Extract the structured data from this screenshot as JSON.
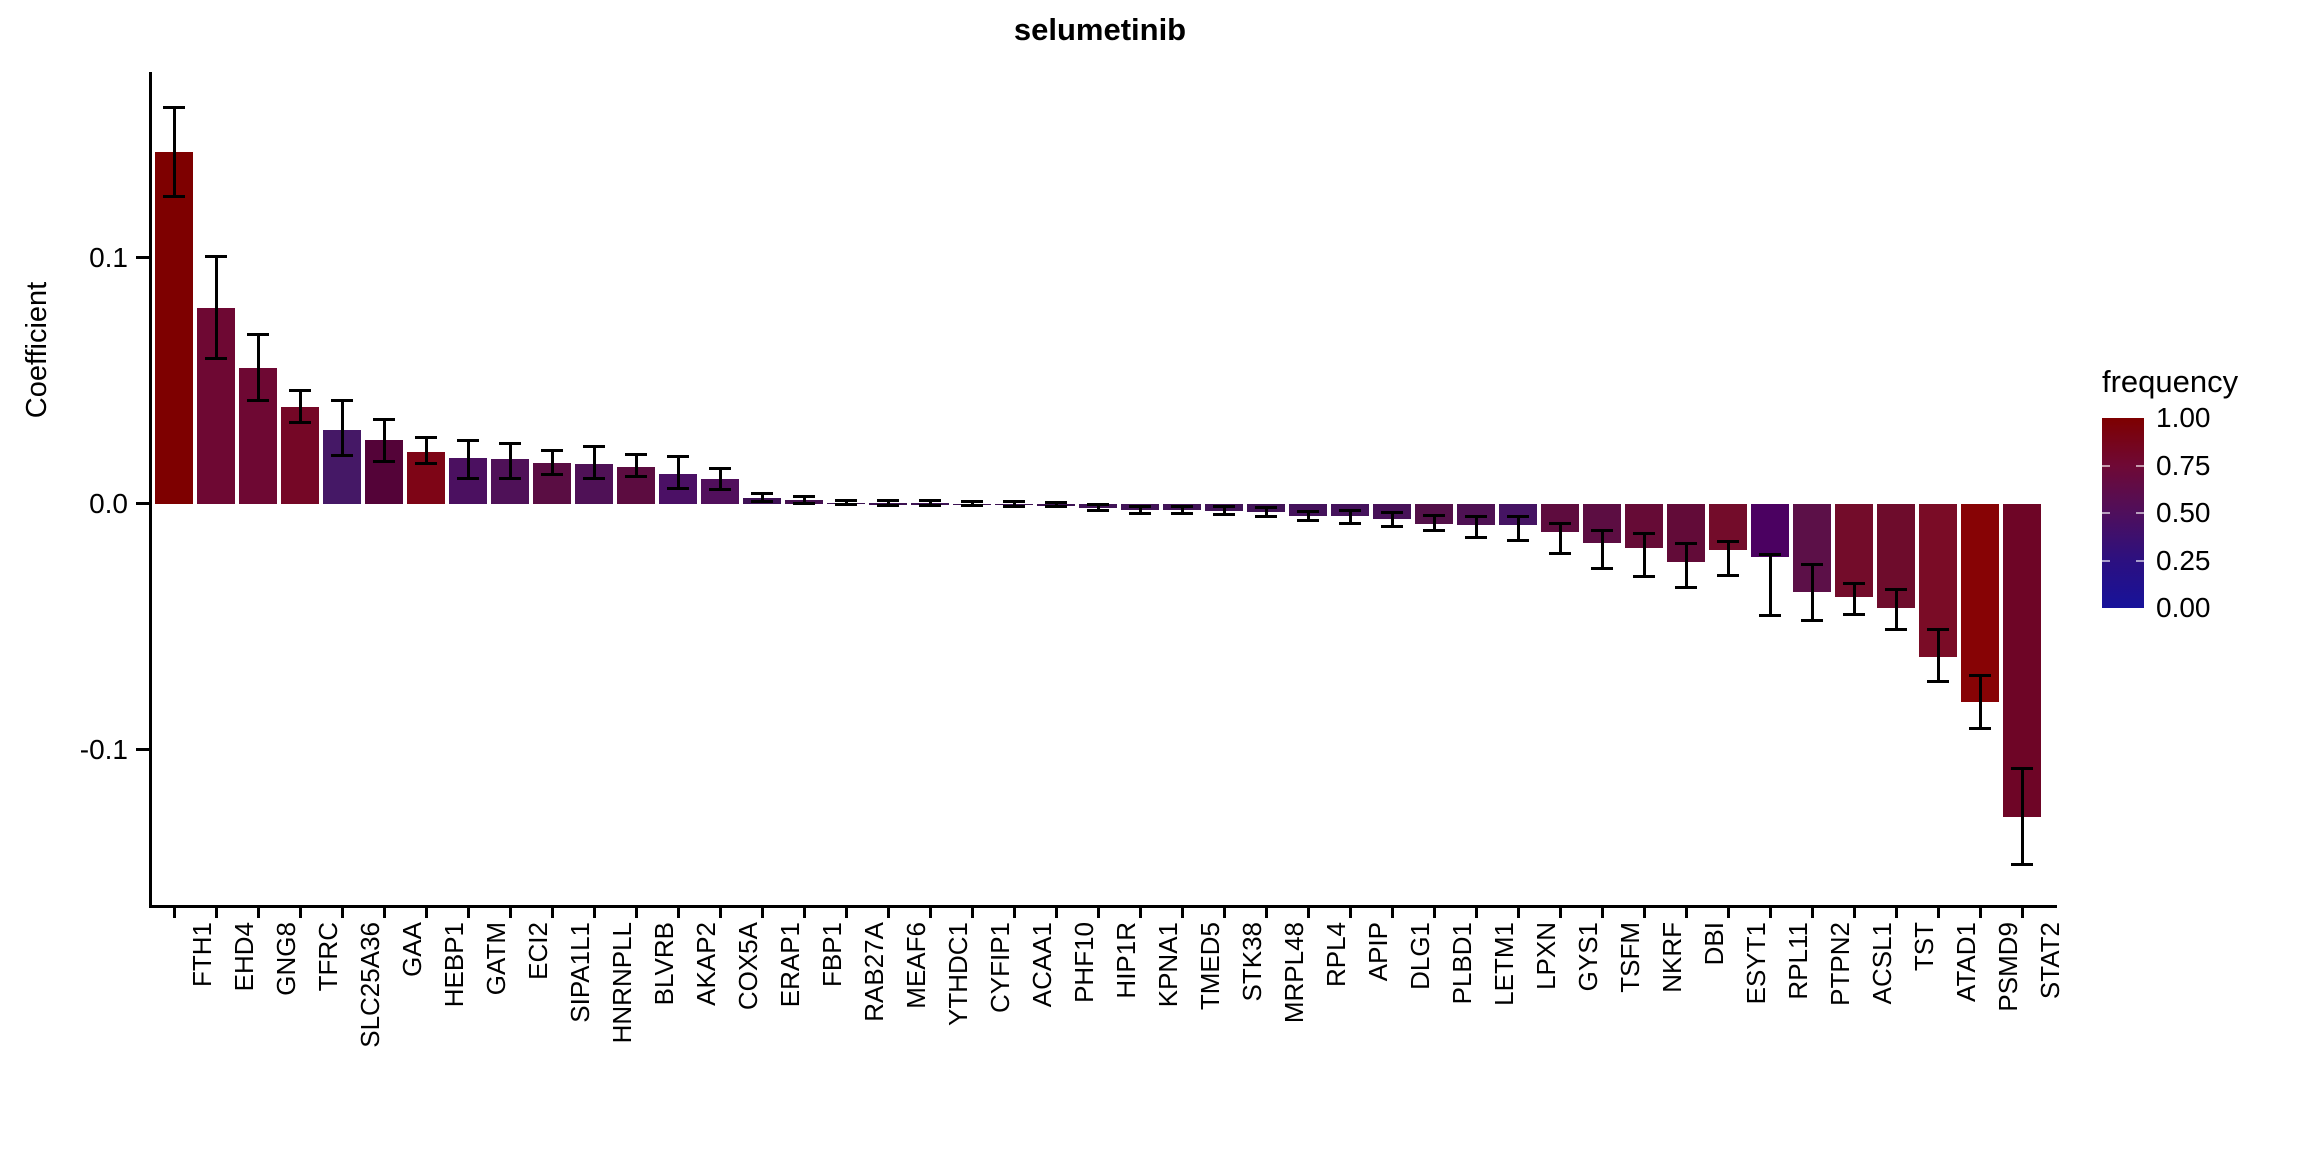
{
  "title": "selumetinib",
  "chart_data": {
    "type": "bar",
    "title": "selumetinib",
    "xlabel": "",
    "ylabel": "Coefficient",
    "ylim": [
      -0.155,
      0.175
    ],
    "grid": false,
    "y_ticks": [
      {
        "label": "0.1",
        "value": 0.1
      },
      {
        "label": "0.0",
        "value": 0.0
      },
      {
        "label": "-0.1",
        "value": -0.1
      }
    ],
    "legend": {
      "title": "frequency",
      "position": "right",
      "ticks": [
        "1.00",
        "0.75",
        "0.50",
        "0.25",
        "0.00"
      ],
      "gradient_top_to_bottom": [
        "#7E0000",
        "#6F0935",
        "#4F0F5C",
        "#2C1080",
        "#17129A"
      ]
    },
    "bars": [
      {
        "gene": "FTH1",
        "value": 0.143,
        "err_lo": 0.125,
        "err_hi": 0.161,
        "color": "#7E0000"
      },
      {
        "gene": "EHD4",
        "value": 0.0795,
        "err_lo": 0.059,
        "err_hi": 0.1005,
        "color": "#6E0833"
      },
      {
        "gene": "GNG8",
        "value": 0.0552,
        "err_lo": 0.042,
        "err_hi": 0.069,
        "color": "#6E0833"
      },
      {
        "gene": "TFRC",
        "value": 0.0393,
        "err_lo": 0.033,
        "err_hi": 0.0463,
        "color": "#750726"
      },
      {
        "gene": "SLC25A36",
        "value": 0.0301,
        "err_lo": 0.0199,
        "err_hi": 0.042,
        "color": "#451866"
      },
      {
        "gene": "GAA",
        "value": 0.026,
        "err_lo": 0.0172,
        "err_hi": 0.0344,
        "color": "#540338"
      },
      {
        "gene": "HEBP1",
        "value": 0.0213,
        "err_lo": 0.0165,
        "err_hi": 0.0272,
        "color": "#7E0516"
      },
      {
        "gene": "GATM",
        "value": 0.0186,
        "err_lo": 0.0104,
        "err_hi": 0.026,
        "color": "#4B1060"
      },
      {
        "gene": "ECI2",
        "value": 0.0182,
        "err_lo": 0.0104,
        "err_hi": 0.0247,
        "color": "#4F1158"
      },
      {
        "gene": "SIPA1L1",
        "value": 0.0166,
        "err_lo": 0.0119,
        "err_hi": 0.0217,
        "color": "#5A0D43"
      },
      {
        "gene": "HNRNPLL",
        "value": 0.0162,
        "err_lo": 0.0104,
        "err_hi": 0.0234,
        "color": "#4F1156"
      },
      {
        "gene": "BLVRB",
        "value": 0.0152,
        "err_lo": 0.0111,
        "err_hi": 0.0202,
        "color": "#5C0C40"
      },
      {
        "gene": "AKAP2",
        "value": 0.0123,
        "err_lo": 0.0065,
        "err_hi": 0.0194,
        "color": "#4B1065"
      },
      {
        "gene": "COX5A",
        "value": 0.0103,
        "err_lo": 0.006,
        "err_hi": 0.0143,
        "color": "#510F5C"
      },
      {
        "gene": "ERAP1",
        "value": 0.0025,
        "err_lo": 0.0012,
        "err_hi": 0.0042,
        "color": "#3E1155"
      },
      {
        "gene": "FBP1",
        "value": 0.0016,
        "err_lo": 0.0004,
        "err_hi": 0.0029,
        "color": "#45104F"
      },
      {
        "gene": "RAB27A",
        "value": 0.0006,
        "err_lo": -0.0004,
        "err_hi": 0.0016,
        "color": "#3C1252"
      },
      {
        "gene": "MEAF6",
        "value": 0.0004,
        "err_lo": -0.0006,
        "err_hi": 0.0014,
        "color": "#3C1252"
      },
      {
        "gene": "YTHDC1",
        "value": 0.0003,
        "err_lo": -0.0007,
        "err_hi": 0.0013,
        "color": "#3C1252"
      },
      {
        "gene": "CYFIP1",
        "value": 0.0002,
        "err_lo": -0.0008,
        "err_hi": 0.0012,
        "color": "#3C1252"
      },
      {
        "gene": "ACAA1",
        "value": 0.0001,
        "err_lo": -0.0009,
        "err_hi": 0.0011,
        "color": "#3C1252"
      },
      {
        "gene": "PHF10",
        "value": -0.0002,
        "err_lo": -0.0012,
        "err_hi": 0.0008,
        "color": "#3C1252"
      },
      {
        "gene": "HIP1R",
        "value": -0.0015,
        "err_lo": -0.0028,
        "err_hi": -0.0003,
        "color": "#411457"
      },
      {
        "gene": "KPNA1",
        "value": -0.0024,
        "err_lo": -0.0038,
        "err_hi": -0.0009,
        "color": "#411457"
      },
      {
        "gene": "TMED5",
        "value": -0.0024,
        "err_lo": -0.0039,
        "err_hi": -0.001,
        "color": "#411457"
      },
      {
        "gene": "STK38",
        "value": -0.0028,
        "err_lo": -0.0044,
        "err_hi": -0.0012,
        "color": "#411457"
      },
      {
        "gene": "MRPL48",
        "value": -0.0034,
        "err_lo": -0.0052,
        "err_hi": -0.0016,
        "color": "#411457"
      },
      {
        "gene": "RPL4",
        "value": -0.0048,
        "err_lo": -0.0066,
        "err_hi": -0.0029,
        "color": "#44125B"
      },
      {
        "gene": "APIP",
        "value": -0.005,
        "err_lo": -0.0078,
        "err_hi": -0.0027,
        "color": "#44125B"
      },
      {
        "gene": "DLG1",
        "value": -0.0063,
        "err_lo": -0.0092,
        "err_hi": -0.0035,
        "color": "#471158"
      },
      {
        "gene": "PLBD1",
        "value": -0.008,
        "err_lo": -0.0108,
        "err_hi": -0.0046,
        "color": "#531048"
      },
      {
        "gene": "LETM1",
        "value": -0.0086,
        "err_lo": -0.0135,
        "err_hi": -0.005,
        "color": "#4E1153"
      },
      {
        "gene": "LPXN",
        "value": -0.0086,
        "err_lo": -0.0147,
        "err_hi": -0.0051,
        "color": "#451463"
      },
      {
        "gene": "GYS1",
        "value": -0.0115,
        "err_lo": -0.0202,
        "err_hi": -0.0078,
        "color": "#5E0C3E"
      },
      {
        "gene": "TSFM",
        "value": -0.016,
        "err_lo": -0.0262,
        "err_hi": -0.0108,
        "color": "#5C0D42"
      },
      {
        "gene": "NKRF",
        "value": -0.018,
        "err_lo": -0.0295,
        "err_hi": -0.0118,
        "color": "#660B36"
      },
      {
        "gene": "DBI",
        "value": -0.0234,
        "err_lo": -0.0339,
        "err_hi": -0.016,
        "color": "#620B38"
      },
      {
        "gene": "ESYT1",
        "value": -0.0187,
        "err_lo": -0.0289,
        "err_hi": -0.0153,
        "color": "#730C2A"
      },
      {
        "gene": "RPL11",
        "value": -0.0214,
        "err_lo": -0.0455,
        "err_hi": -0.0205,
        "color": "#4B0161"
      },
      {
        "gene": "PTPN2",
        "value": -0.0357,
        "err_lo": -0.0474,
        "err_hi": -0.0245,
        "color": "#5C1048"
      },
      {
        "gene": "ACSL1",
        "value": -0.0379,
        "err_lo": -0.0451,
        "err_hi": -0.0322,
        "color": "#730C2A"
      },
      {
        "gene": "TST",
        "value": -0.0424,
        "err_lo": -0.0509,
        "err_hi": -0.0347,
        "color": "#6E0C2C"
      },
      {
        "gene": "ATAD1",
        "value": -0.0621,
        "err_lo": -0.0722,
        "err_hi": -0.0512,
        "color": "#7A0C26"
      },
      {
        "gene": "PSMD9",
        "value": -0.0804,
        "err_lo": -0.0912,
        "err_hi": -0.0699,
        "color": "#870305"
      },
      {
        "gene": "STAT2",
        "value": -0.1271,
        "err_lo": -0.1467,
        "err_hi": -0.1075,
        "color": "#6E0526"
      }
    ]
  }
}
